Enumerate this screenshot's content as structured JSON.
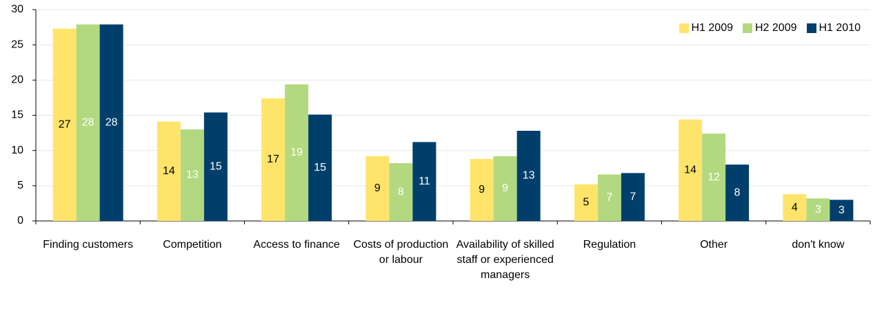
{
  "chart_data": {
    "type": "bar",
    "categories": [
      "Finding customers",
      "Competition",
      "Access to finance",
      "Costs of production or labour",
      "Availability of skilled staff or experienced managers",
      "Regulation",
      "Other",
      "don't know"
    ],
    "series": [
      {
        "name": "H1 2009",
        "color": "#ffe46b",
        "label_color": "#000000",
        "values": [
          27.3,
          14.1,
          17.4,
          9.2,
          8.8,
          5.2,
          14.4,
          3.8
        ],
        "value_labels": [
          "27",
          "14",
          "17",
          "9",
          "9",
          "5",
          "14",
          "4"
        ]
      },
      {
        "name": "H2 2009",
        "color": "#b2d980",
        "label_color": "#ffffff",
        "values": [
          27.9,
          13.0,
          19.4,
          8.2,
          9.2,
          6.6,
          12.4,
          3.2
        ],
        "value_labels": [
          "28",
          "13",
          "19",
          "8",
          "9",
          "7",
          "12",
          "3"
        ]
      },
      {
        "name": "H1 2010",
        "color": "#003f6b",
        "label_color": "#ffffff",
        "values": [
          27.9,
          15.4,
          15.1,
          11.2,
          12.8,
          6.8,
          8.0,
          3.0
        ],
        "value_labels": [
          "28",
          "15",
          "15",
          "11",
          "13",
          "7",
          "8",
          "3"
        ]
      }
    ],
    "ylim": [
      0,
      30
    ],
    "yticks": [
      0,
      5,
      10,
      15,
      20,
      25,
      30
    ],
    "grid": true,
    "legend": "top-right"
  }
}
